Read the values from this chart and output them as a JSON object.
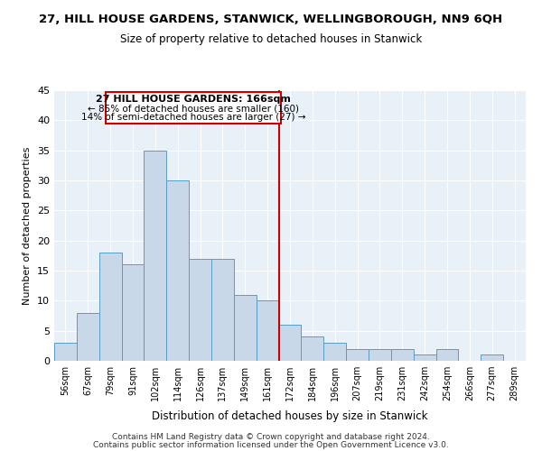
{
  "title": "27, HILL HOUSE GARDENS, STANWICK, WELLINGBOROUGH, NN9 6QH",
  "subtitle": "Size of property relative to detached houses in Stanwick",
  "xlabel": "Distribution of detached houses by size in Stanwick",
  "ylabel": "Number of detached properties",
  "bar_labels": [
    "56sqm",
    "67sqm",
    "79sqm",
    "91sqm",
    "102sqm",
    "114sqm",
    "126sqm",
    "137sqm",
    "149sqm",
    "161sqm",
    "172sqm",
    "184sqm",
    "196sqm",
    "207sqm",
    "219sqm",
    "231sqm",
    "242sqm",
    "254sqm",
    "266sqm",
    "277sqm",
    "289sqm"
  ],
  "bar_values": [
    3,
    8,
    18,
    16,
    35,
    30,
    17,
    17,
    11,
    10,
    6,
    4,
    3,
    2,
    2,
    2,
    1,
    2,
    0,
    1,
    0
  ],
  "bar_color": "#c8d8e8",
  "bar_edge_color": "#5a9cc5",
  "vline_x": 9.5,
  "vline_color": "#cc0000",
  "annotation_title": "27 HILL HOUSE GARDENS: 166sqm",
  "annotation_line1": "← 85% of detached houses are smaller (160)",
  "annotation_line2": "14% of semi-detached houses are larger (27) →",
  "annotation_box_edge": "#cc0000",
  "ylim": [
    0,
    45
  ],
  "yticks": [
    0,
    5,
    10,
    15,
    20,
    25,
    30,
    35,
    40,
    45
  ],
  "footer1": "Contains HM Land Registry data © Crown copyright and database right 2024.",
  "footer2": "Contains public sector information licensed under the Open Government Licence v3.0.",
  "bg_color": "#e8f0f8"
}
